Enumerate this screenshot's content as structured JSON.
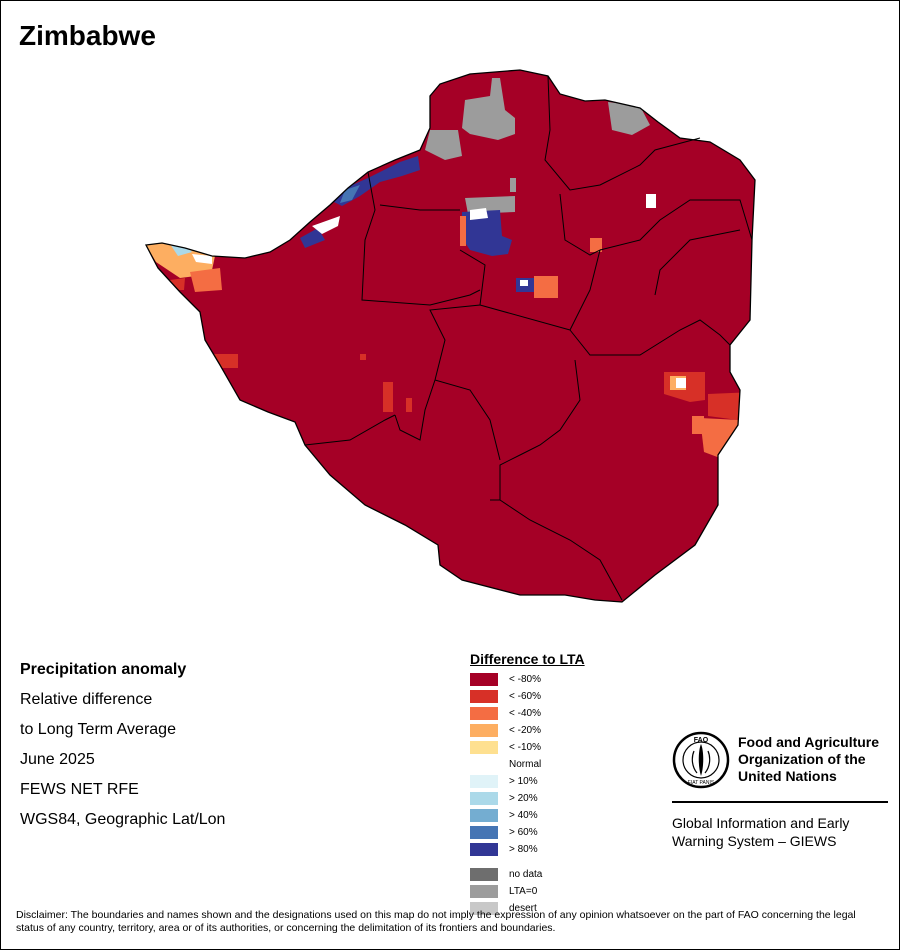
{
  "title": "Zimbabwe",
  "info": {
    "heading": "Precipitation anomaly",
    "lines": [
      "Relative difference",
      "to Long Term Average",
      "June 2025",
      "FEWS NET RFE",
      "WGS84, Geographic Lat/Lon"
    ]
  },
  "legend": {
    "title": "Difference to LTA",
    "classes": [
      {
        "label": "< -80%",
        "color": "#a50026"
      },
      {
        "label": "< -60%",
        "color": "#d73027"
      },
      {
        "label": "< -40%",
        "color": "#f46d43"
      },
      {
        "label": "< -20%",
        "color": "#fdae61"
      },
      {
        "label": "< -10%",
        "color": "#fee090"
      },
      {
        "label": "Normal",
        "color": "#ffffff"
      },
      {
        "label": "> 10%",
        "color": "#e0f3f8"
      },
      {
        "label": "> 20%",
        "color": "#abd9e9"
      },
      {
        "label": "> 40%",
        "color": "#74add1"
      },
      {
        "label": "> 60%",
        "color": "#4575b4"
      },
      {
        "label": "> 80%",
        "color": "#313695"
      }
    ],
    "extra": [
      {
        "label": "no data",
        "color": "#6e6e6e"
      },
      {
        "label": "LTA=0",
        "color": "#9c9c9c"
      },
      {
        "label": "desert",
        "color": "#c8c8c8"
      }
    ]
  },
  "logo": {
    "org_name": "Food and Agriculture Organization of the United Nations",
    "logo_text": "FAO",
    "logo_motto": "FIAT PANIS",
    "subtitle": "Global Information and Early Warning System – GIEWS"
  },
  "disclaimer": "Disclaimer: The boundaries and names shown and the designations used on this map do not imply the expression of any opinion whatsoever on the part of FAO concerning the legal status of any country, territory, area or of its authorities, or concerning the delimitation of its frontiers and boundaries."
}
